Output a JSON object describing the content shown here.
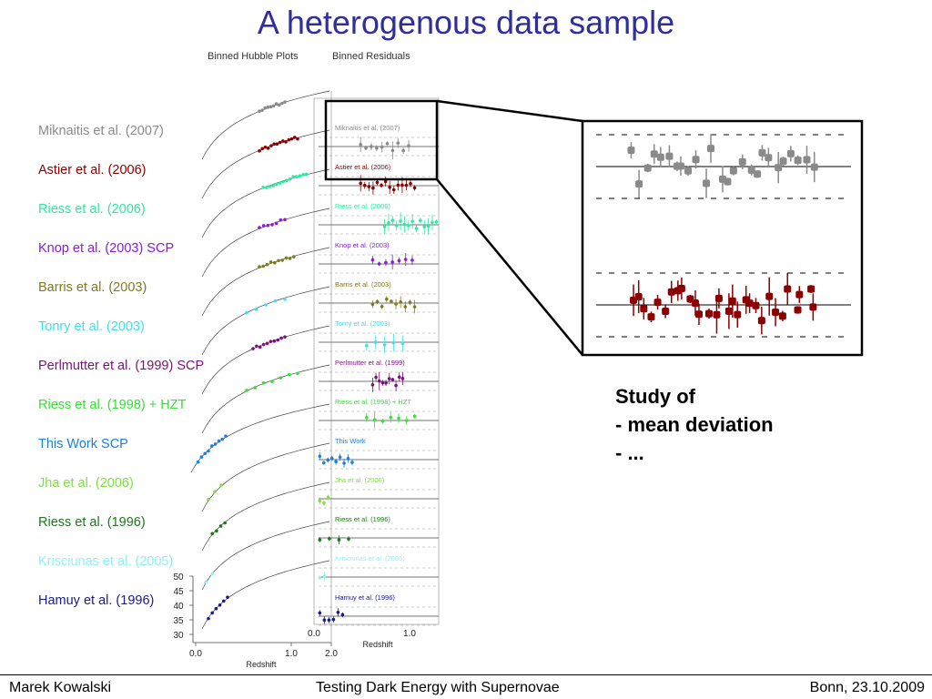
{
  "slide": {
    "title": "A heterogenous data sample",
    "col_hubble": "Binned Hubble Plots",
    "col_residuals": "Binned Residuals"
  },
  "datasets": [
    {
      "name": "Miknaitis et al. (2007)",
      "color": "#8a8a8a",
      "res_label": "Miknaitis et al. (2007)"
    },
    {
      "name": "Astier et al. (2006)",
      "color": "#8b0000",
      "res_label": "Astier et al. (2006)"
    },
    {
      "name": "Riess et al. (2006)",
      "color": "#2ee8a0",
      "res_label": "Riess et al. (2006)"
    },
    {
      "name": "Knop et al. (2003)  SCP",
      "color": "#8a1bd6",
      "res_label": "Knop et al. (2003)"
    },
    {
      "name": "Barris et al. (2003)",
      "color": "#7f7a1a",
      "res_label": "Barris et al. (2003)"
    },
    {
      "name": "Tonry et al. (2003)",
      "color": "#3fe0ee",
      "res_label": "Tonry et al. (2003)"
    },
    {
      "name": "Perlmutter et al. (1999)  SCP",
      "color": "#7b117b",
      "res_label": "Perlmutter et al. (1999)"
    },
    {
      "name": "Riess et al. (1998) + HZT",
      "color": "#35e035",
      "res_label": "Riess et al. (1998) + HZT"
    },
    {
      "name": "This Work  SCP",
      "color": "#1a7fe0",
      "res_label": "This Work"
    },
    {
      "name": "Jha et al. (2006)",
      "color": "#7fe040",
      "res_label": "Jha et al. (2006)"
    },
    {
      "name": "Riess et al. (1996)",
      "color": "#1a7a1a",
      "res_label": "Riess et al. (1996)"
    },
    {
      "name": "Krisciunas et al. (2005)",
      "color": "#8ff0f5",
      "res_label": "Krisciunas et al. (2005)"
    },
    {
      "name": "Hamuy et al. (1996)",
      "color": "#1a1a8a",
      "res_label": "Hamuy et al. (1996)"
    }
  ],
  "hubble_axis": {
    "y_ticks": [
      "50",
      "45",
      "40",
      "35",
      "30"
    ],
    "x_ticks": [
      "0.0",
      "1.0",
      "2.0"
    ],
    "xlabel": "Redshift"
  },
  "residual_axis": {
    "x_ticks": [
      "0.0",
      "1.0"
    ],
    "xlabel": "Redshift"
  },
  "study": {
    "heading": "Study of",
    "item1": "- mean deviation",
    "item2": "- ..."
  },
  "footer": {
    "author": "Marek Kowalski",
    "talk": "Testing Dark Energy with Supernovae",
    "place_date": "Bonn, 23.10.2009"
  }
}
